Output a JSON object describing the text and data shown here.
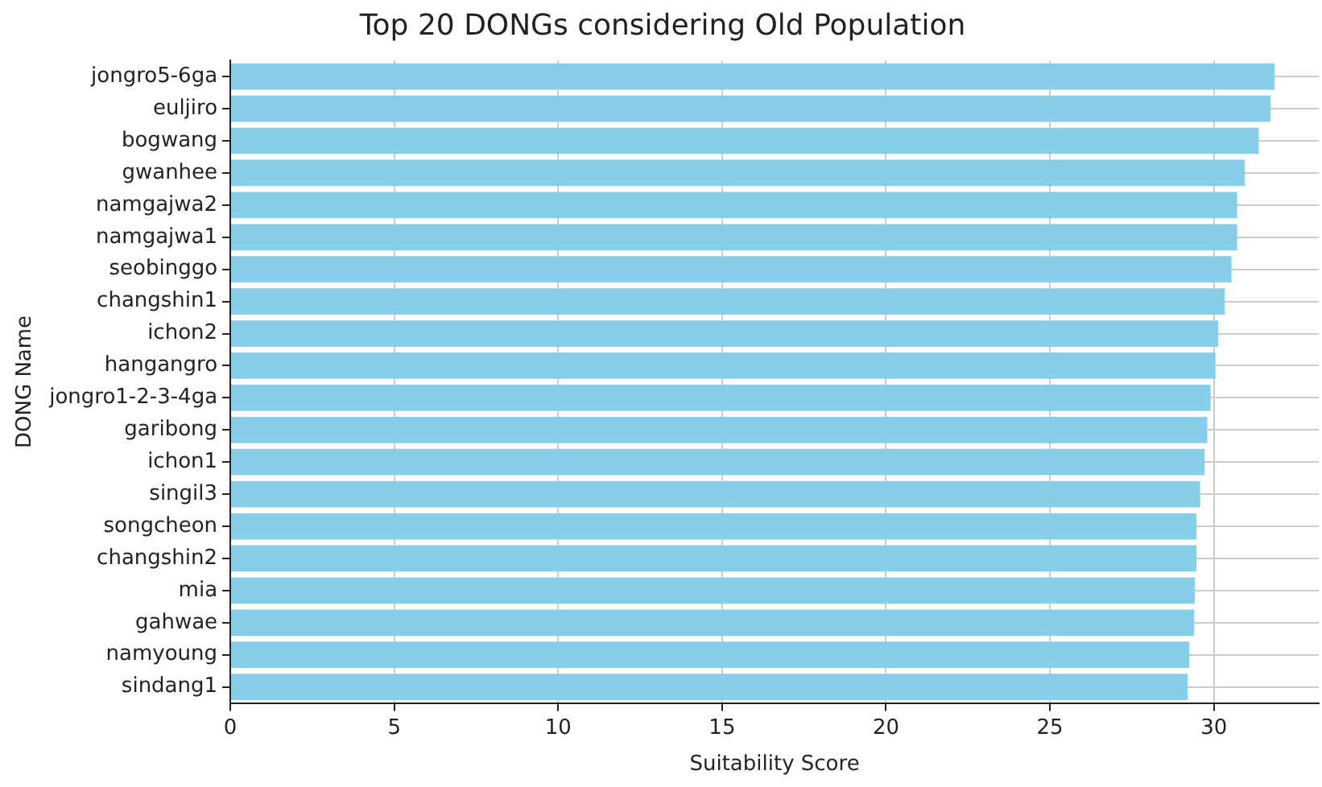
{
  "chart_data": {
    "type": "bar",
    "orientation": "horizontal",
    "title": "Top 20 DONGs considering Old Population",
    "xlabel": "Suitability Score",
    "ylabel": "DONG Name",
    "categories": [
      "jongro5-6ga",
      "euljiro",
      "bogwang",
      "gwanhee",
      "namgajwa2",
      "namgajwa1",
      "seobinggo",
      "changshin1",
      "ichon2",
      "hangangro",
      "jongro1-2-3-4ga",
      "garibong",
      "ichon1",
      "singil3",
      "songcheon",
      "changshin2",
      "mia",
      "gahwae",
      "namyoung",
      "sindang1"
    ],
    "values": [
      31.85,
      31.73,
      31.37,
      30.94,
      30.71,
      30.71,
      30.54,
      30.33,
      30.13,
      30.05,
      29.9,
      29.8,
      29.72,
      29.58,
      29.47,
      29.47,
      29.42,
      29.4,
      29.25,
      29.2
    ],
    "color": "#87ceeb",
    "xlim": [
      0,
      33.2
    ],
    "xticks": [
      0,
      5,
      10,
      15,
      20,
      25,
      30
    ],
    "grid": true
  }
}
